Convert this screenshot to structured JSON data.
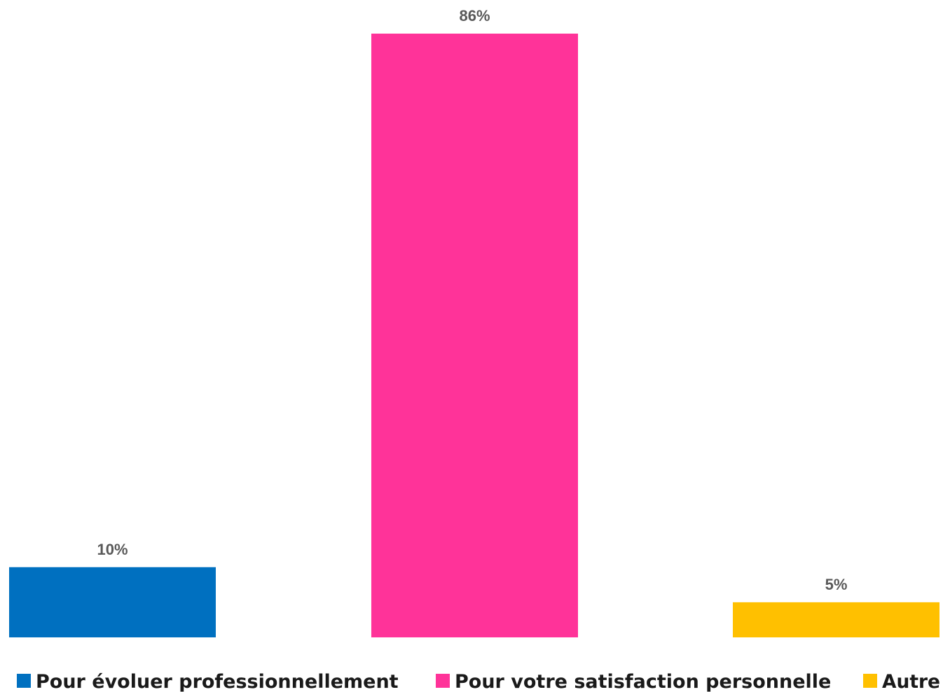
{
  "chart_data": {
    "type": "bar",
    "categories": [
      "Pour évoluer professionnellement",
      "Pour votre satisfaction personnelle",
      "Autre"
    ],
    "values": [
      10,
      86,
      5
    ],
    "value_labels": [
      "10%",
      "86%",
      "5%"
    ],
    "colors": [
      "#0070C0",
      "#FF3399",
      "#FFC000"
    ],
    "unit": "%",
    "ylim": [
      0,
      86
    ],
    "grid": false,
    "legend_position": "bottom",
    "title": "",
    "xlabel": "",
    "ylabel": ""
  }
}
